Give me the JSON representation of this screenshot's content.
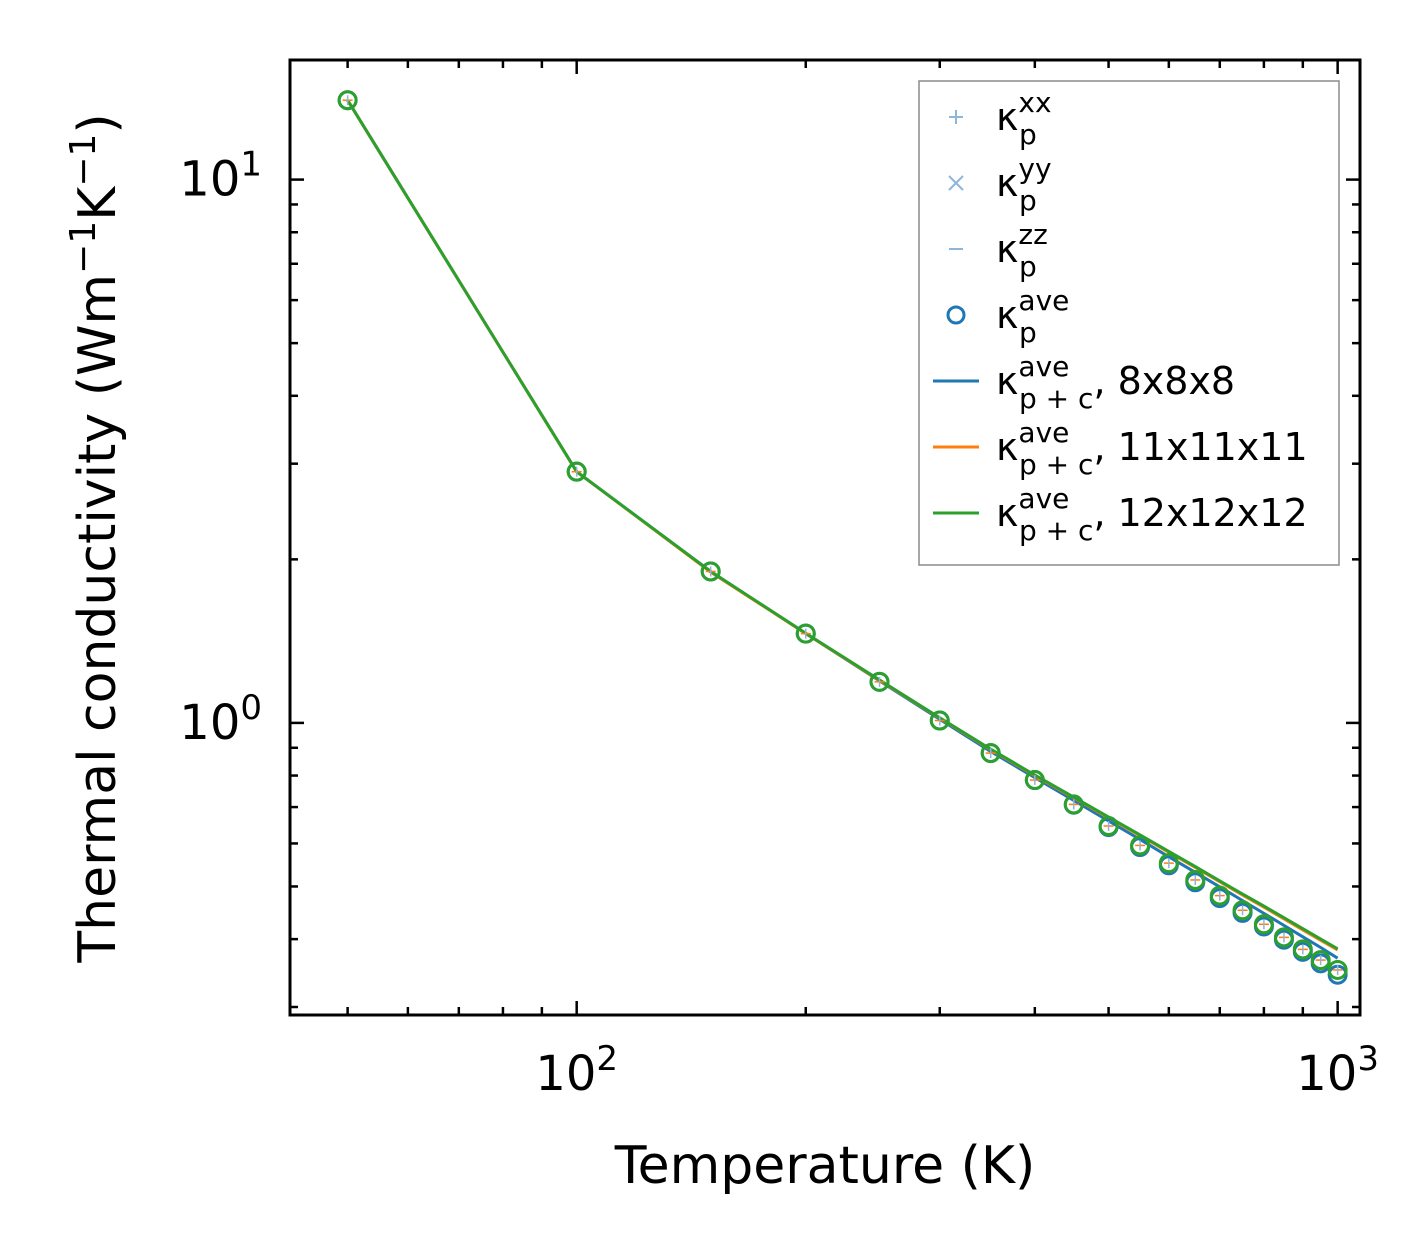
{
  "chart_data": {
    "type": "line",
    "xscale": "log",
    "yscale": "log",
    "xlabel": "Temperature (K)",
    "ylabel": "Thermal conductivity (Wm⁻¹K⁻¹)",
    "xlim": [
      42,
      1070
    ],
    "ylim": [
      0.29,
      16.6
    ],
    "x_tick_labels": [
      {
        "value": 100,
        "base": "10",
        "exp": "2"
      },
      {
        "value": 1000,
        "base": "10",
        "exp": "3"
      }
    ],
    "y_tick_labels": [
      {
        "value": 1,
        "base": "10",
        "exp": "0"
      },
      {
        "value": 10,
        "base": "10",
        "exp": "1"
      }
    ],
    "x": [
      50,
      100,
      150,
      200,
      250,
      300,
      350,
      400,
      450,
      500,
      550,
      600,
      650,
      700,
      750,
      800,
      850,
      900,
      950,
      1000
    ],
    "markers": {
      "kappa_p_ave": [
        14.0,
        2.9,
        1.9,
        1.46,
        1.19,
        1.01,
        0.88,
        0.785,
        0.707,
        0.643,
        0.591,
        0.547,
        0.509,
        0.476,
        0.447,
        0.422,
        0.399,
        0.379,
        0.361,
        0.344
      ],
      "kappa_p_ave_12": [
        14.0,
        2.9,
        1.9,
        1.46,
        1.19,
        1.01,
        0.88,
        0.785,
        0.708,
        0.646,
        0.595,
        0.552,
        0.514,
        0.481,
        0.452,
        0.426,
        0.403,
        0.383,
        0.366,
        0.351
      ]
    },
    "series": [
      {
        "name": "8x8x8",
        "color": "#1f77b4",
        "values": [
          14.0,
          2.9,
          1.9,
          1.46,
          1.195,
          1.015,
          0.886,
          0.793,
          0.72,
          0.66,
          0.61,
          0.567,
          0.531,
          0.499,
          0.471,
          0.446,
          0.424,
          0.404,
          0.386,
          0.369
        ]
      },
      {
        "name": "11x11x11",
        "color": "#ff7f0e",
        "values": [
          14.0,
          2.9,
          1.895,
          1.46,
          1.198,
          1.02,
          0.893,
          0.8,
          0.728,
          0.669,
          0.62,
          0.578,
          0.542,
          0.51,
          0.482,
          0.458,
          0.436,
          0.416,
          0.398,
          0.382
        ]
      },
      {
        "name": "12x12x12",
        "color": "#2ca02c",
        "values": [
          14.0,
          2.9,
          1.9,
          1.462,
          1.2,
          1.022,
          0.895,
          0.802,
          0.73,
          0.671,
          0.622,
          0.58,
          0.544,
          0.512,
          0.484,
          0.46,
          0.438,
          0.418,
          0.4,
          0.384
        ]
      }
    ],
    "legend": {
      "position": "top-right",
      "entries": [
        {
          "symbol": "+",
          "base": "κ",
          "sub": "p",
          "sup": "xx",
          "suffix": "",
          "color": "#8fb6d8"
        },
        {
          "symbol": "×",
          "base": "κ",
          "sub": "p",
          "sup": "yy",
          "suffix": "",
          "color": "#8fb6d8"
        },
        {
          "symbol": "–",
          "base": "κ",
          "sub": "p",
          "sup": "zz",
          "suffix": "",
          "color": "#8fb6d8"
        },
        {
          "symbol": "o",
          "base": "κ",
          "sub": "p",
          "sup": "ave",
          "suffix": "",
          "color": "#1f77b4"
        },
        {
          "symbol": "line",
          "base": "κ",
          "sub": "p + c",
          "sup": "ave",
          "suffix": ", 8x8x8",
          "color": "#1f77b4"
        },
        {
          "symbol": "line",
          "base": "κ",
          "sub": "p + c",
          "sup": "ave",
          "suffix": ", 11x11x11",
          "color": "#ff7f0e"
        },
        {
          "symbol": "line",
          "base": "κ",
          "sub": "p + c",
          "sup": "ave",
          "suffix": ", 12x12x12",
          "color": "#2ca02c"
        }
      ]
    }
  }
}
